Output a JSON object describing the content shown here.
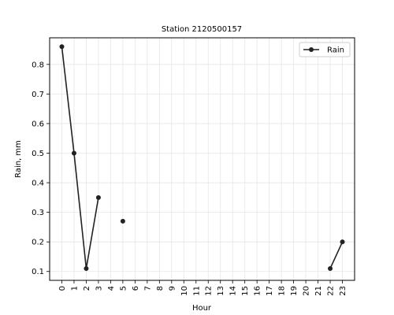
{
  "chart_data": {
    "type": "line",
    "title": "Station 2120500157",
    "xlabel": "Hour",
    "ylabel": "Rain, mm",
    "categories": [
      "0",
      "1",
      "2",
      "3",
      "4",
      "5",
      "6",
      "7",
      "8",
      "9",
      "10",
      "11",
      "12",
      "13",
      "14",
      "15",
      "16",
      "17",
      "18",
      "19",
      "20",
      "21",
      "22",
      "23"
    ],
    "series": [
      {
        "name": "Rain",
        "color": "#222222",
        "values": [
          0.86,
          0.5,
          0.11,
          0.35,
          null,
          0.27,
          null,
          null,
          null,
          null,
          null,
          null,
          null,
          null,
          null,
          null,
          null,
          null,
          null,
          null,
          null,
          null,
          0.11,
          0.2
        ]
      }
    ],
    "yticks": [
      0.1,
      0.2,
      0.3,
      0.4,
      0.5,
      0.6,
      0.7,
      0.8
    ],
    "ylim": [
      0.07,
      0.89
    ],
    "xlim": [
      -1,
      24
    ],
    "grid": true,
    "legend_position": "top-right"
  }
}
